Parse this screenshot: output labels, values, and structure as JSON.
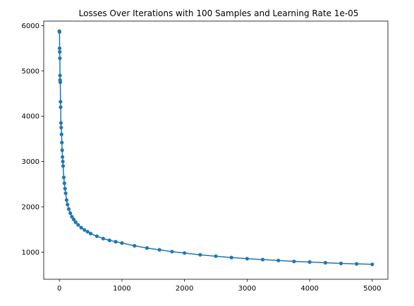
{
  "chart_data": {
    "type": "line",
    "title": "Losses Over Iterations with 100 Samples and Learning Rate 1e-05",
    "xlabel": "",
    "ylabel": "",
    "xlim": [
      -250,
      5250
    ],
    "ylim": [
      400,
      6100
    ],
    "x_ticks": [
      0,
      1000,
      2000,
      3000,
      4000,
      5000
    ],
    "y_ticks": [
      1000,
      2000,
      3000,
      4000,
      5000,
      6000
    ],
    "grid": false,
    "legend": "none",
    "series": [
      {
        "color": "#1f77b4",
        "marker": "circle",
        "x": [
          0,
          2,
          4,
          6,
          8,
          10,
          12,
          15,
          18,
          21,
          25,
          30,
          35,
          40,
          45,
          50,
          55,
          60,
          70,
          80,
          90,
          100,
          115,
          130,
          150,
          175,
          200,
          230,
          260,
          300,
          350,
          400,
          450,
          500,
          600,
          700,
          800,
          900,
          1000,
          1200,
          1400,
          1600,
          1800,
          2000,
          2250,
          2500,
          2750,
          3000,
          3250,
          3500,
          3750,
          4000,
          4250,
          4500,
          4750,
          5000
        ],
        "y": [
          5880,
          5860,
          5500,
          5420,
          5280,
          4900,
          4800,
          4750,
          4320,
          4200,
          3850,
          3750,
          3600,
          3420,
          3250,
          3100,
          3000,
          2900,
          2650,
          2520,
          2400,
          2300,
          2150,
          2050,
          1950,
          1860,
          1780,
          1720,
          1660,
          1600,
          1540,
          1490,
          1450,
          1410,
          1350,
          1300,
          1260,
          1230,
          1200,
          1140,
          1090,
          1050,
          1010,
          980,
          940,
          910,
          880,
          855,
          835,
          815,
          795,
          780,
          765,
          750,
          740,
          730
        ]
      }
    ]
  }
}
